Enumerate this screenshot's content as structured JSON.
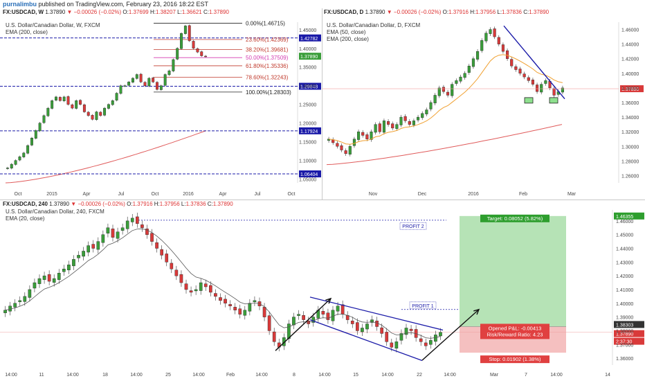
{
  "header": {
    "user": "purnalimbu",
    "text": "published on TradingView.com, February 23, 2016 18:22 EST"
  },
  "colors": {
    "up": "#3a9e3a",
    "down": "#d93a3a",
    "blue_line": "#1a1aa8",
    "ema_red": "#e05a5a",
    "ema_orange": "#f0a030",
    "fib": "#c0392b",
    "profit_zone": "#b6e3b6",
    "loss_zone": "#f5c0c0"
  },
  "chart_data": [
    {
      "type": "candlestick",
      "symbol": "FX:USDCAD, W",
      "ohlc_text": {
        "last": "1.37890",
        "change": "−0.00026 (−0.02%)",
        "o": "1.37699",
        "h": "1.38207",
        "l": "1.36621",
        "c": "1.37890"
      },
      "title": "U.S. Dollar/Canadian Dollar, W, FXCM",
      "indicators": [
        "EMA (200, close)"
      ],
      "x_ticks": [
        "Oct",
        "2015",
        "Apr",
        "Jul",
        "Oct",
        "2016",
        "Apr",
        "Jul",
        "Oct"
      ],
      "y_ticks": [
        "1.45000",
        "1.40000",
        "1.35000",
        "1.30000",
        "1.25000",
        "1.20000",
        "1.15000",
        "1.10000",
        "1.05000"
      ],
      "ylim": [
        1.04,
        1.47
      ],
      "fib_levels": [
        {
          "label": "0.00%(1.46715)",
          "value": 1.46715
        },
        {
          "label": "23.60%(1.42369)",
          "value": 1.42369
        },
        {
          "label": "38.20%(1.39681)",
          "value": 1.39681
        },
        {
          "label": "50.00%(1.37509)",
          "value": 1.37509
        },
        {
          "label": "61.80%(1.35336)",
          "value": 1.35336
        },
        {
          "label": "78.60%(1.32243)",
          "value": 1.32243
        },
        {
          "label": "100.00%(1.28303)",
          "value": 1.28303
        }
      ],
      "h_lines": [
        "1.42782",
        "1.29848",
        "1.17924",
        "1.06404"
      ],
      "h_line_values": [
        1.42782,
        1.29848,
        1.17924,
        1.06404
      ],
      "last_price_label": "1.37890",
      "closes": [
        1.08,
        1.09,
        1.1,
        1.11,
        1.12,
        1.14,
        1.16,
        1.18,
        1.2,
        1.22,
        1.24,
        1.26,
        1.27,
        1.26,
        1.27,
        1.25,
        1.24,
        1.26,
        1.25,
        1.23,
        1.22,
        1.21,
        1.23,
        1.22,
        1.24,
        1.25,
        1.26,
        1.28,
        1.3,
        1.3,
        1.31,
        1.32,
        1.33,
        1.31,
        1.3,
        1.32,
        1.31,
        1.29,
        1.3,
        1.33,
        1.34,
        1.37,
        1.4,
        1.44,
        1.46,
        1.42,
        1.4,
        1.39,
        1.38,
        1.379
      ]
    },
    {
      "type": "candlestick",
      "symbol": "FX:USDCAD, D",
      "ohlc_text": {
        "last": "1.37890",
        "change": "−0.00026 (−0.02%)",
        "o": "1.37916",
        "h": "1.37956",
        "l": "1.37836",
        "c": "1.37890"
      },
      "title": "U.S. Dollar/Canadian Dollar, D, FXCM",
      "indicators": [
        "EMA (50, close)",
        "EMA (200, close)"
      ],
      "x_ticks": [
        "Nov",
        "Dec",
        "2016",
        "Feb",
        "Mar"
      ],
      "y_ticks": [
        "1.46000",
        "1.44000",
        "1.42000",
        "1.40000",
        "1.38000",
        "1.36000",
        "1.34000",
        "1.32000",
        "1.30000",
        "1.28000",
        "1.26000"
      ],
      "ylim": [
        1.25,
        1.47
      ],
      "last_price_label": "1.37890",
      "closes": [
        1.31,
        1.305,
        1.3,
        1.295,
        1.29,
        1.3,
        1.31,
        1.32,
        1.315,
        1.31,
        1.32,
        1.33,
        1.32,
        1.335,
        1.33,
        1.325,
        1.33,
        1.34,
        1.335,
        1.33,
        1.335,
        1.34,
        1.345,
        1.35,
        1.36,
        1.37,
        1.38,
        1.375,
        1.37,
        1.385,
        1.39,
        1.395,
        1.4,
        1.41,
        1.42,
        1.43,
        1.445,
        1.455,
        1.46,
        1.45,
        1.44,
        1.43,
        1.42,
        1.41,
        1.405,
        1.4,
        1.395,
        1.39,
        1.385,
        1.375,
        1.385,
        1.39,
        1.38,
        1.37,
        1.375,
        1.38
      ]
    },
    {
      "type": "candlestick",
      "symbol": "FX:USDCAD, 240",
      "ohlc_text": {
        "last": "1.37890",
        "change": "−0.00026 (−0.02%)",
        "o": "1.37916",
        "h": "1.37956",
        "l": "1.37836",
        "c": "1.37890"
      },
      "title": "U.S. Dollar/Canadian Dollar, 240, FXCM",
      "indicators": [
        "EMA (20, close)"
      ],
      "x_ticks": [
        "14:00",
        "11",
        "14:00",
        "18",
        "14:00",
        "25",
        "14:00",
        "Feb",
        "14:00",
        "8",
        "14:00",
        "15",
        "14:00",
        "22",
        "14:00",
        "Mar",
        "7",
        "14:00",
        "14"
      ],
      "y_ticks": [
        "1.46000",
        "1.45000",
        "1.44000",
        "1.43000",
        "1.42000",
        "1.41000",
        "1.40000",
        "1.39000",
        "1.38000",
        "1.37000",
        "1.36000"
      ],
      "ylim": [
        1.355,
        1.468
      ],
      "labels": {
        "profit2": "PROFIT 2",
        "profit1": "PROFIT 1"
      },
      "target_text": "Target: 0.08052 (5.82%)",
      "target_price": "1.46355",
      "target_value": 1.46355,
      "opened_text": "Opened P&L: -0.00413",
      "rr_text": "Risk/Reward Ratio: 4.23",
      "stop_text": "Stop: 0.01902 (1.38%)",
      "entry_price": "1.38303",
      "entry_value": 1.38303,
      "stop_value": 1.36401,
      "last_price_label": "1.37890",
      "countdown": "2:37:30",
      "closes": [
        1.395,
        1.398,
        1.4,
        1.402,
        1.405,
        1.41,
        1.415,
        1.418,
        1.42,
        1.416,
        1.418,
        1.422,
        1.425,
        1.428,
        1.432,
        1.435,
        1.438,
        1.442,
        1.44,
        1.445,
        1.45,
        1.455,
        1.448,
        1.452,
        1.455,
        1.46,
        1.462,
        1.458,
        1.455,
        1.45,
        1.445,
        1.44,
        1.435,
        1.43,
        1.425,
        1.42,
        1.415,
        1.41,
        1.408,
        1.41,
        1.415,
        1.412,
        1.408,
        1.405,
        1.402,
        1.4,
        1.398,
        1.395,
        1.392,
        1.395,
        1.4,
        1.402,
        1.398,
        1.39,
        1.38,
        1.372,
        1.368,
        1.375,
        1.385,
        1.39,
        1.392,
        1.388,
        1.385,
        1.39,
        1.395,
        1.392,
        1.388,
        1.395,
        1.398,
        1.392,
        1.388,
        1.385,
        1.38,
        1.382,
        1.385,
        1.388,
        1.383,
        1.378,
        1.372,
        1.368,
        1.372,
        1.378,
        1.382,
        1.38,
        1.375,
        1.372,
        1.369,
        1.373,
        1.377,
        1.3789
      ]
    }
  ]
}
